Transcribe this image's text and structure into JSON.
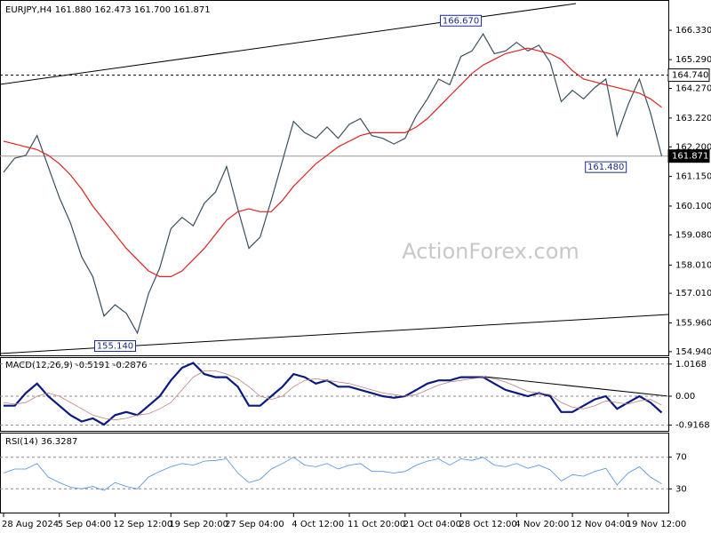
{
  "chart_data": [
    {
      "type": "line",
      "title": "EURJPY,H4  161.880 162.473 161.700 161.871",
      "watermark": "ActionForex.com",
      "ylim": [
        154.81,
        167.34
      ],
      "yticks": [
        {
          "value": 166.33,
          "label": "166.330"
        },
        {
          "value": 165.29,
          "label": "165.290"
        },
        {
          "value": 164.27,
          "label": "164.270"
        },
        {
          "value": 163.22,
          "label": "163.220"
        },
        {
          "value": 162.2,
          "label": "162.200"
        },
        {
          "value": 161.15,
          "label": "161.150"
        },
        {
          "value": 160.1,
          "label": "160.100"
        },
        {
          "value": 159.08,
          "label": "159.080"
        },
        {
          "value": 158.01,
          "label": "158.010"
        },
        {
          "value": 157.01,
          "label": "157.010"
        },
        {
          "value": 155.96,
          "label": "155.960"
        },
        {
          "value": 154.94,
          "label": "154.940"
        }
      ],
      "series": [
        {
          "color": "#3a5060",
          "values": [
            161.3,
            161.8,
            161.9,
            162.6,
            161.5,
            160.4,
            159.5,
            158.3,
            157.6,
            156.2,
            156.6,
            156.3,
            155.6,
            157.0,
            157.9,
            159.3,
            159.7,
            159.4,
            160.2,
            160.6,
            161.5,
            160.0,
            158.6,
            159.0,
            160.3,
            161.7,
            163.1,
            162.7,
            162.5,
            162.9,
            162.5,
            163.0,
            163.2,
            162.6,
            162.5,
            162.3,
            162.5,
            163.3,
            163.9,
            164.6,
            164.4,
            165.4,
            165.6,
            166.2,
            165.5,
            165.6,
            165.9,
            165.6,
            165.8,
            165.2,
            163.8,
            164.2,
            163.9,
            164.3,
            164.6,
            162.6,
            163.7,
            164.6,
            163.4,
            161.871
          ]
        },
        {
          "color": "#e02020",
          "values": [
            162.4,
            162.3,
            162.2,
            162.1,
            161.9,
            161.6,
            161.2,
            160.7,
            160.1,
            159.6,
            159.1,
            158.6,
            158.2,
            157.8,
            157.6,
            157.6,
            157.8,
            158.2,
            158.6,
            159.1,
            159.6,
            159.9,
            160.0,
            159.9,
            159.9,
            160.3,
            160.8,
            161.2,
            161.6,
            161.9,
            162.2,
            162.4,
            162.6,
            162.7,
            162.7,
            162.7,
            162.7,
            162.9,
            163.2,
            163.6,
            164.0,
            164.4,
            164.8,
            165.1,
            165.3,
            165.5,
            165.6,
            165.7,
            165.6,
            165.5,
            165.3,
            164.9,
            164.6,
            164.5,
            164.4,
            164.3,
            164.2,
            164.1,
            163.9,
            163.6
          ]
        }
      ],
      "hlines": [
        {
          "value": 164.74,
          "label": "164.740",
          "style": "dashed"
        },
        {
          "value": 161.871,
          "label": "161.871",
          "style": "solid"
        }
      ],
      "annotations": [
        {
          "value": 166.67,
          "label": "166.670",
          "index": 41
        },
        {
          "value": 155.14,
          "label": "155.140",
          "index": 10
        },
        {
          "value": 161.48,
          "label": "161.480",
          "index": 54
        }
      ]
    },
    {
      "type": "line",
      "title": "MACD(12,26,9) -0.5191 -0.2876",
      "ylim": [
        -1.096,
        1.236
      ],
      "yticks": [
        1.0168,
        {
          "value": 0,
          "label": "0.00"
        },
        -0.9168
      ],
      "series": [
        {
          "color": "#0a1a80",
          "width": 2.2,
          "values": [
            -0.3,
            -0.3,
            0.1,
            0.4,
            0.0,
            -0.3,
            -0.6,
            -0.8,
            -0.7,
            -0.9,
            -0.6,
            -0.5,
            -0.6,
            -0.3,
            0.0,
            0.5,
            0.9,
            1.05,
            0.7,
            0.6,
            0.6,
            0.3,
            -0.3,
            -0.3,
            0.0,
            0.3,
            0.7,
            0.6,
            0.4,
            0.5,
            0.3,
            0.3,
            0.2,
            0.1,
            0.0,
            -0.05,
            0.0,
            0.2,
            0.4,
            0.5,
            0.5,
            0.6,
            0.6,
            0.6,
            0.4,
            0.2,
            0.1,
            0.0,
            0.1,
            0.0,
            -0.5,
            -0.5,
            -0.3,
            -0.1,
            0.0,
            -0.4,
            -0.2,
            0.0,
            -0.2,
            -0.5191
          ]
        },
        {
          "color": "#c08080",
          "width": 0.8,
          "values": [
            -0.2,
            -0.25,
            -0.2,
            0.0,
            0.1,
            0.0,
            -0.2,
            -0.4,
            -0.6,
            -0.7,
            -0.75,
            -0.7,
            -0.6,
            -0.55,
            -0.4,
            -0.2,
            0.2,
            0.6,
            0.8,
            0.8,
            0.7,
            0.55,
            0.3,
            0.0,
            -0.1,
            0.0,
            0.3,
            0.5,
            0.55,
            0.5,
            0.45,
            0.4,
            0.3,
            0.2,
            0.1,
            0.05,
            0.0,
            0.05,
            0.2,
            0.35,
            0.45,
            0.5,
            0.55,
            0.6,
            0.55,
            0.45,
            0.3,
            0.15,
            0.1,
            0.05,
            -0.2,
            -0.35,
            -0.4,
            -0.3,
            -0.15,
            -0.2,
            -0.25,
            -0.15,
            -0.1,
            -0.2876
          ]
        }
      ]
    },
    {
      "type": "line",
      "title": "RSI(14) 36.3287",
      "ylim": [
        0,
        100
      ],
      "yticks": [
        70,
        30
      ],
      "series": [
        {
          "color": "#4a90e0",
          "width": 0.8,
          "values": [
            50,
            55,
            55,
            62,
            45,
            38,
            32,
            30,
            33,
            28,
            38,
            33,
            30,
            45,
            52,
            58,
            62,
            60,
            65,
            66,
            68,
            50,
            38,
            42,
            55,
            62,
            70,
            60,
            58,
            62,
            55,
            60,
            62,
            52,
            52,
            50,
            52,
            60,
            65,
            68,
            60,
            68,
            66,
            70,
            60,
            58,
            62,
            56,
            60,
            54,
            40,
            48,
            46,
            52,
            56,
            35,
            50,
            58,
            45,
            36.3287
          ]
        }
      ],
      "categories": [
        "28 Aug 2024",
        null,
        null,
        null,
        null,
        "5 Sep 04:00",
        null,
        null,
        null,
        null,
        "12 Sep 12:00",
        null,
        null,
        null,
        null,
        "19 Sep 20:00",
        null,
        null,
        null,
        null,
        "27 Sep 04:00",
        null,
        null,
        null,
        null,
        null,
        "4 Oct 12:00",
        null,
        null,
        null,
        null,
        "11 Oct 20:00",
        null,
        null,
        null,
        null,
        "21 Oct 04:00",
        null,
        null,
        null,
        null,
        "28 Oct 12:00",
        null,
        null,
        null,
        null,
        "4 Nov 20:00",
        null,
        null,
        null,
        null,
        "12 Nov 04:00",
        null,
        null,
        null,
        null,
        "19 Nov 12:00",
        null,
        null,
        null
      ]
    }
  ]
}
